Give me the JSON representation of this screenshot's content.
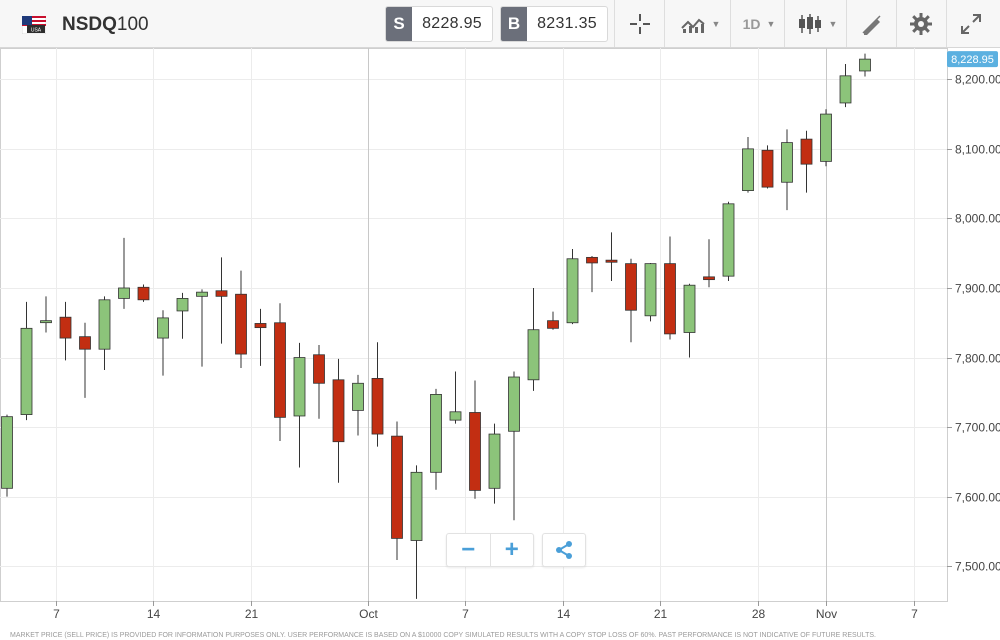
{
  "header": {
    "flag_icon": "usa-flag-icon",
    "flag_text": "USA",
    "symbol_bold": "NSDQ",
    "symbol_rest": "100",
    "sell_tag": "S",
    "sell_price": "8228.95",
    "buy_tag": "B",
    "buy_price": "8231.35",
    "timeframe": "1D",
    "tools": [
      "crosshair-icon",
      "indicators-icon",
      "candlestick-type-icon",
      "drawing-tool-icon",
      "settings-gear-icon",
      "fullscreen-icon"
    ]
  },
  "controls": {
    "zoom_out": "−",
    "zoom_in": "+",
    "share_icon": "share-icon"
  },
  "disclaimer": "MARKET PRICE (SELL PRICE) IS PROVIDED FOR INFORMATION PURPOSES ONLY. USER PERFORMANCE IS BASED ON A $10000 COPY SIMULATED RESULTS WITH A COPY STOP LOSS OF 60%. PAST PERFORMANCE IS NOT INDICATIVE OF FUTURE RESULTS.",
  "colors": {
    "up_fill": "#8cc47a",
    "down_fill": "#c22e12",
    "wick": "#333333",
    "grid": "#ececec",
    "accent": "#4a9fd8",
    "current_price_badge": "#5bb0e0"
  },
  "chart_data": {
    "type": "candlestick",
    "current_price_label": "8,228.95",
    "current_price": 8228.95,
    "ylim": [
      7450,
      8245
    ],
    "y_ticks": [
      7500,
      7600,
      7700,
      7800,
      7900,
      8000,
      8100,
      8200
    ],
    "y_tick_labels": [
      "7,500.00",
      "7,600.00",
      "7,700.00",
      "7,800.00",
      "7,900.00",
      "8,000.00",
      "8,100.00",
      "8,200.00"
    ],
    "x_tick_labels": [
      {
        "label": "7",
        "index": 2.5
      },
      {
        "label": "14",
        "index": 7.5
      },
      {
        "label": "21",
        "index": 12.5
      },
      {
        "label": "Oct",
        "index": 18.5
      },
      {
        "label": "7",
        "index": 23.5
      },
      {
        "label": "14",
        "index": 28.5
      },
      {
        "label": "21",
        "index": 33.5
      },
      {
        "label": "28",
        "index": 38.5
      },
      {
        "label": "Nov",
        "index": 42
      },
      {
        "label": "7",
        "index": 46.5
      }
    ],
    "vertical_markers": [
      18.5,
      42
    ],
    "candles": [
      {
        "o": 7612,
        "h": 7718,
        "l": 7600,
        "c": 7715
      },
      {
        "o": 7718,
        "h": 7880,
        "l": 7710,
        "c": 7842
      },
      {
        "o": 7852,
        "h": 7888,
        "l": 7836,
        "c": 7853
      },
      {
        "o": 7858,
        "h": 7880,
        "l": 7796,
        "c": 7828
      },
      {
        "o": 7830,
        "h": 7850,
        "l": 7742,
        "c": 7812
      },
      {
        "o": 7812,
        "h": 7888,
        "l": 7782,
        "c": 7883
      },
      {
        "o": 7885,
        "h": 7972,
        "l": 7870,
        "c": 7900
      },
      {
        "o": 7901,
        "h": 7905,
        "l": 7880,
        "c": 7883
      },
      {
        "o": 7828,
        "h": 7868,
        "l": 7774,
        "c": 7857
      },
      {
        "o": 7867,
        "h": 7893,
        "l": 7827,
        "c": 7885
      },
      {
        "o": 7888,
        "h": 7898,
        "l": 7787,
        "c": 7894
      },
      {
        "o": 7896,
        "h": 7944,
        "l": 7820,
        "c": 7888
      },
      {
        "o": 7891,
        "h": 7925,
        "l": 7785,
        "c": 7805
      },
      {
        "o": 7849,
        "h": 7870,
        "l": 7788,
        "c": 7843
      },
      {
        "o": 7850,
        "h": 7878,
        "l": 7680,
        "c": 7714
      },
      {
        "o": 7716,
        "h": 7821,
        "l": 7642,
        "c": 7800
      },
      {
        "o": 7804,
        "h": 7818,
        "l": 7712,
        "c": 7763
      },
      {
        "o": 7768,
        "h": 7798,
        "l": 7620,
        "c": 7679
      },
      {
        "o": 7724,
        "h": 7775,
        "l": 7688,
        "c": 7763
      },
      {
        "o": 7770,
        "h": 7822,
        "l": 7672,
        "c": 7690
      },
      {
        "o": 7687,
        "h": 7708,
        "l": 7509,
        "c": 7540
      },
      {
        "o": 7537,
        "h": 7645,
        "l": 7453,
        "c": 7635
      },
      {
        "o": 7635,
        "h": 7755,
        "l": 7610,
        "c": 7747
      },
      {
        "o": 7710,
        "h": 7780,
        "l": 7705,
        "c": 7722
      },
      {
        "o": 7721,
        "h": 7767,
        "l": 7597,
        "c": 7609
      },
      {
        "o": 7612,
        "h": 7705,
        "l": 7590,
        "c": 7690
      },
      {
        "o": 7694,
        "h": 7780,
        "l": 7566,
        "c": 7772
      },
      {
        "o": 7768,
        "h": 7900,
        "l": 7752,
        "c": 7840
      },
      {
        "o": 7853,
        "h": 7866,
        "l": 7840,
        "c": 7842
      },
      {
        "o": 7850,
        "h": 7956,
        "l": 7848,
        "c": 7942
      },
      {
        "o": 7944,
        "h": 7946,
        "l": 7894,
        "c": 7936
      },
      {
        "o": 7940,
        "h": 7980,
        "l": 7910,
        "c": 7937
      },
      {
        "o": 7935,
        "h": 7942,
        "l": 7822,
        "c": 7868
      },
      {
        "o": 7860,
        "h": 7936,
        "l": 7852,
        "c": 7935
      },
      {
        "o": 7935,
        "h": 7974,
        "l": 7826,
        "c": 7834
      },
      {
        "o": 7836,
        "h": 7906,
        "l": 7800,
        "c": 7904
      },
      {
        "o": 7916,
        "h": 7970,
        "l": 7901,
        "c": 7912
      },
      {
        "o": 7917,
        "h": 8024,
        "l": 7910,
        "c": 8021
      },
      {
        "o": 8040,
        "h": 8117,
        "l": 8037,
        "c": 8100
      },
      {
        "o": 8098,
        "h": 8105,
        "l": 8043,
        "c": 8045
      },
      {
        "o": 8052,
        "h": 8128,
        "l": 8012,
        "c": 8109
      },
      {
        "o": 8114,
        "h": 8126,
        "l": 8037,
        "c": 8078
      },
      {
        "o": 8082,
        "h": 8157,
        "l": 8075,
        "c": 8150
      },
      {
        "o": 8166,
        "h": 8222,
        "l": 8160,
        "c": 8205
      },
      {
        "o": 8212,
        "h": 8237,
        "l": 8204,
        "c": 8229
      }
    ]
  }
}
